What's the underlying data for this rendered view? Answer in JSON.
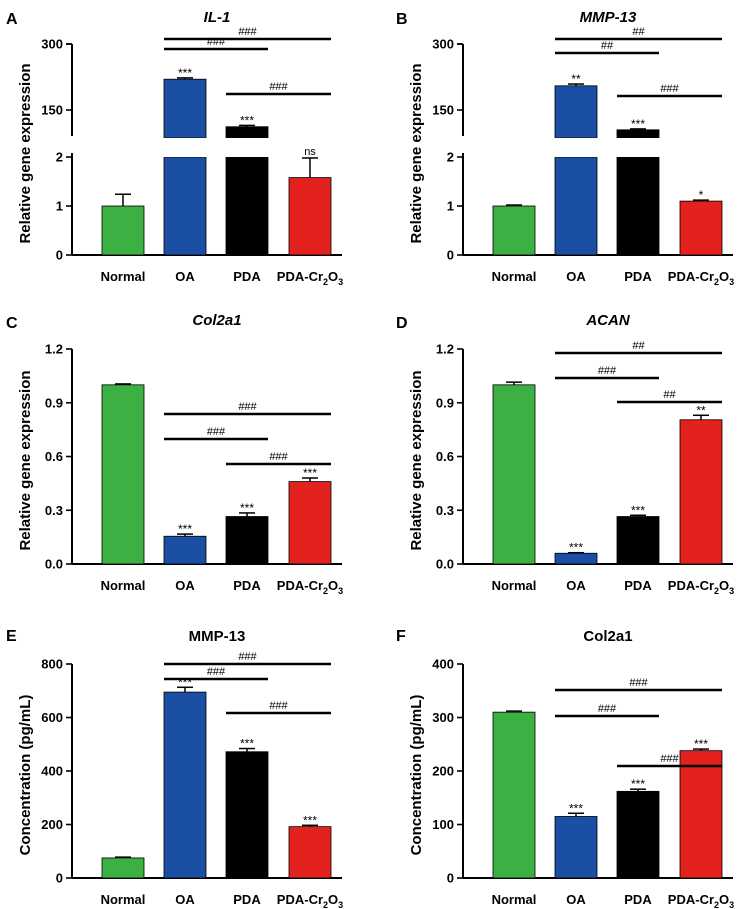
{
  "colors": {
    "normal": "#3cb043",
    "oa": "#1a4fa3",
    "pda": "#000000",
    "pdacr": "#e3211e",
    "axis": "#000000"
  },
  "chart_data": [
    {
      "panel": "A",
      "type": "bar",
      "title": "IL-1",
      "title_italic": true,
      "ylabel": "Relative gene expression",
      "broken_axis": true,
      "lower_ylim": [
        0,
        2
      ],
      "lower_ticks": [
        "0",
        "1",
        "2"
      ],
      "upper_ylim": [
        100,
        300
      ],
      "upper_ticks": [
        "150",
        "300"
      ],
      "categories": [
        "Normal",
        "OA",
        "PDA",
        "PDA-Cr2O3"
      ],
      "values": [
        1.0,
        220,
        112,
        1.58
      ],
      "errors": [
        0.24,
        3,
        3,
        0.4
      ],
      "sig": [
        "",
        "***",
        "***",
        "ns"
      ],
      "brackets": [
        {
          "from": 1,
          "to": 3,
          "label": "###"
        },
        {
          "from": 1,
          "to": 2,
          "label": "###"
        },
        {
          "from": 2,
          "to": 3,
          "label": "###"
        }
      ]
    },
    {
      "panel": "B",
      "type": "bar",
      "title": "MMP-13",
      "title_italic": true,
      "ylabel": "Relative gene expression",
      "broken_axis": true,
      "lower_ylim": [
        0,
        2
      ],
      "lower_ticks": [
        "0",
        "1",
        "2"
      ],
      "upper_ylim": [
        100,
        300
      ],
      "upper_ticks": [
        "150",
        "300"
      ],
      "categories": [
        "Normal",
        "OA",
        "PDA",
        "PDA-Cr2O3"
      ],
      "values": [
        1.0,
        205,
        105,
        1.1
      ],
      "errors": [
        0.02,
        4,
        2,
        0.02
      ],
      "sig": [
        "",
        "**",
        "***",
        "*"
      ],
      "brackets": [
        {
          "from": 1,
          "to": 3,
          "label": "##"
        },
        {
          "from": 1,
          "to": 2,
          "label": "##"
        },
        {
          "from": 2,
          "to": 3,
          "label": "###"
        }
      ]
    },
    {
      "panel": "C",
      "type": "bar",
      "title": "Col2a1",
      "title_italic": true,
      "ylabel": "Relative gene expression",
      "ylim": [
        0,
        1.2
      ],
      "ticks": [
        "0.0",
        "0.3",
        "0.6",
        "0.9",
        "1.2"
      ],
      "categories": [
        "Normal",
        "OA",
        "PDA",
        "PDA-Cr2O3"
      ],
      "values": [
        1.0,
        0.155,
        0.265,
        0.46
      ],
      "errors": [
        0.005,
        0.012,
        0.02,
        0.02
      ],
      "sig": [
        "",
        "***",
        "***",
        "***"
      ],
      "brackets": [
        {
          "from": 1,
          "to": 3,
          "label": "###"
        },
        {
          "from": 1,
          "to": 2,
          "label": "###"
        },
        {
          "from": 2,
          "to": 3,
          "label": "###"
        }
      ]
    },
    {
      "panel": "D",
      "type": "bar",
      "title": "ACAN",
      "title_italic": true,
      "ylabel": "Relative gene expression",
      "ylim": [
        0,
        1.2
      ],
      "ticks": [
        "0.0",
        "0.3",
        "0.6",
        "0.9",
        "1.2"
      ],
      "categories": [
        "Normal",
        "OA",
        "PDA",
        "PDA-Cr2O3"
      ],
      "values": [
        1.0,
        0.06,
        0.265,
        0.805
      ],
      "errors": [
        0.015,
        0.003,
        0.007,
        0.025
      ],
      "sig": [
        "",
        "***",
        "***",
        "**"
      ],
      "brackets": [
        {
          "from": 1,
          "to": 3,
          "label": "##"
        },
        {
          "from": 1,
          "to": 2,
          "label": "###"
        },
        {
          "from": 2,
          "to": 3,
          "label": "##"
        }
      ]
    },
    {
      "panel": "E",
      "type": "bar",
      "title": "MMP-13",
      "title_italic": false,
      "ylabel": "Concentration (pg/mL)",
      "ylim": [
        0,
        800
      ],
      "ticks": [
        "0",
        "200",
        "400",
        "600",
        "800"
      ],
      "categories": [
        "Normal",
        "OA",
        "PDA",
        "PDA-Cr2O3"
      ],
      "values": [
        75,
        695,
        472,
        192
      ],
      "errors": [
        3,
        18,
        12,
        5
      ],
      "sig": [
        "",
        "***",
        "***",
        "***"
      ],
      "brackets": [
        {
          "from": 1,
          "to": 3,
          "label": "###"
        },
        {
          "from": 1,
          "to": 2,
          "label": "###"
        },
        {
          "from": 2,
          "to": 3,
          "label": "###"
        }
      ]
    },
    {
      "panel": "F",
      "type": "bar",
      "title": "Col2a1",
      "title_italic": false,
      "ylabel": "Concentration (pg/mL)",
      "ylim": [
        0,
        400
      ],
      "ticks": [
        "0",
        "100",
        "200",
        "300",
        "400"
      ],
      "categories": [
        "Normal",
        "OA",
        "PDA",
        "PDA-Cr2O3"
      ],
      "values": [
        310,
        115,
        162,
        238
      ],
      "errors": [
        2,
        6,
        4,
        3
      ],
      "sig": [
        "",
        "***",
        "***",
        "***"
      ],
      "brackets": [
        {
          "from": 1,
          "to": 3,
          "label": "###"
        },
        {
          "from": 1,
          "to": 2,
          "label": "###"
        },
        {
          "from": 2,
          "to": 3,
          "label": "###"
        }
      ]
    }
  ]
}
